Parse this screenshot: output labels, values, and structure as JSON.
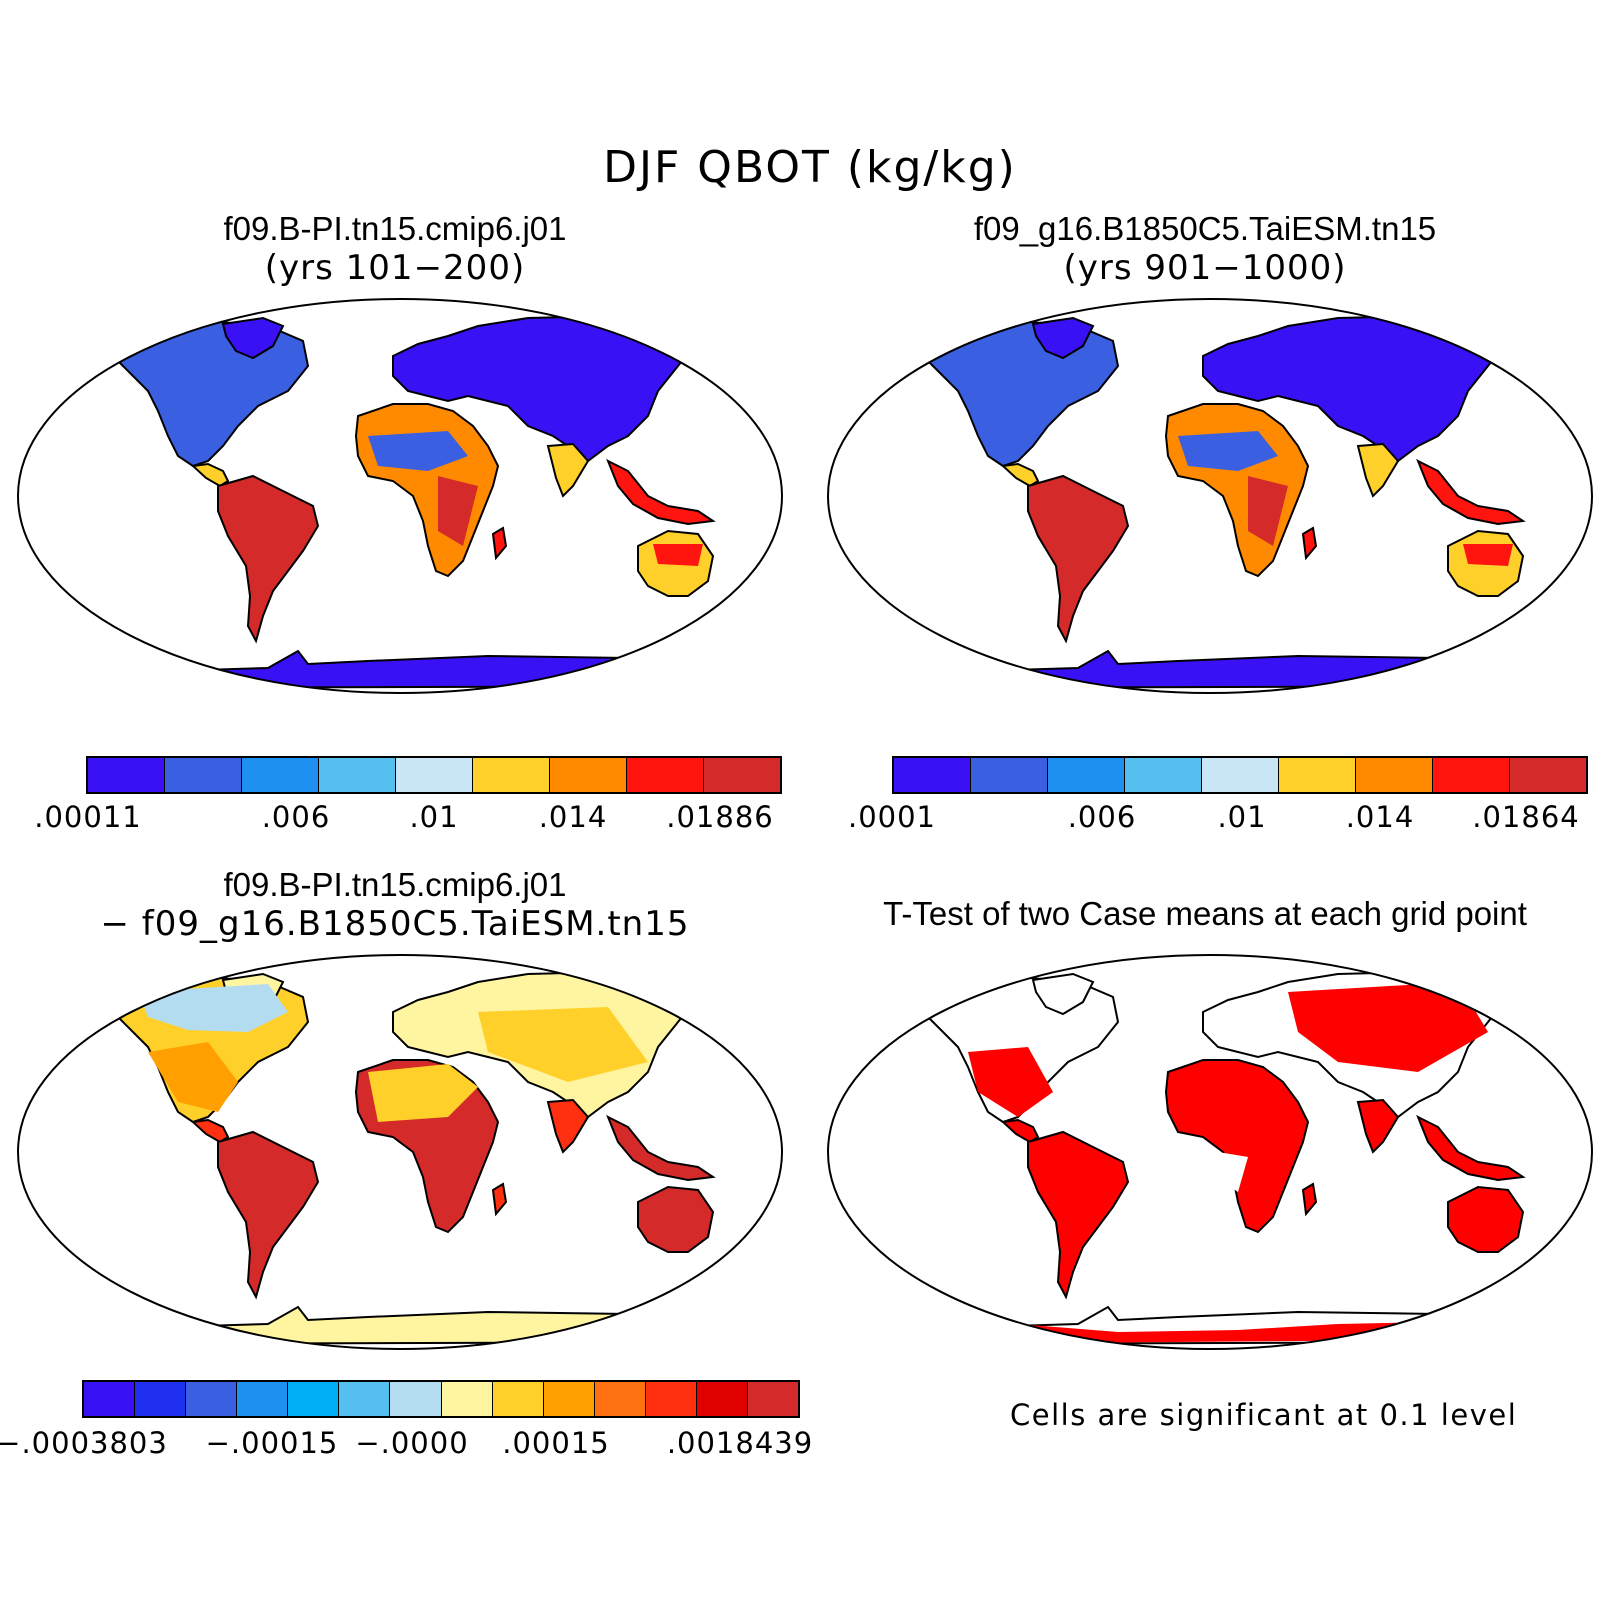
{
  "title": "DJF QBOT (kg/kg)",
  "panels": {
    "top_left": {
      "case": "f09.B-PI.tn15.cmip6.j01",
      "years": "(yrs 101−200)",
      "colorbar": {
        "colors": [
          "#3a10f5",
          "#3a5fe0",
          "#1e90f0",
          "#55c0f0",
          "#c8e6f5",
          "#ffd02a",
          "#ff8a00",
          "#ff1410",
          "#d42a2a"
        ],
        "ticks": [
          ".00011",
          ".006",
          ".01",
          ".014",
          ".01886"
        ]
      }
    },
    "top_right": {
      "case": "f09_g16.B1850C5.TaiESM.tn15",
      "years": "(yrs 901−1000)",
      "colorbar": {
        "colors": [
          "#3a10f5",
          "#3a5fe0",
          "#1e90f0",
          "#55c0f0",
          "#c8e6f5",
          "#ffd02a",
          "#ff8a00",
          "#ff1410",
          "#d42a2a"
        ],
        "ticks": [
          ".0001",
          ".006",
          ".01",
          ".014",
          ".01864"
        ]
      }
    },
    "bottom_left": {
      "case": "f09.B-PI.tn15.cmip6.j01",
      "case2": "− f09_g16.B1850C5.TaiESM.tn15",
      "colorbar": {
        "colors": [
          "#3a10f5",
          "#2030f0",
          "#3a5fe0",
          "#1e90f0",
          "#00b0f5",
          "#55c0f0",
          "#b4dcf0",
          "#fff5a0",
          "#ffd02a",
          "#ffa000",
          "#ff7010",
          "#ff3010",
          "#e00000",
          "#d42a2a"
        ],
        "ticks": [
          "−.0003803",
          "−.00015",
          "−.0000",
          ".00015",
          ".0018439"
        ]
      }
    },
    "bottom_right": {
      "title": "T-Test of two Case means at each grid point",
      "note": "Cells are significant at 0.1 level",
      "sig_color": "#ff0000"
    }
  }
}
